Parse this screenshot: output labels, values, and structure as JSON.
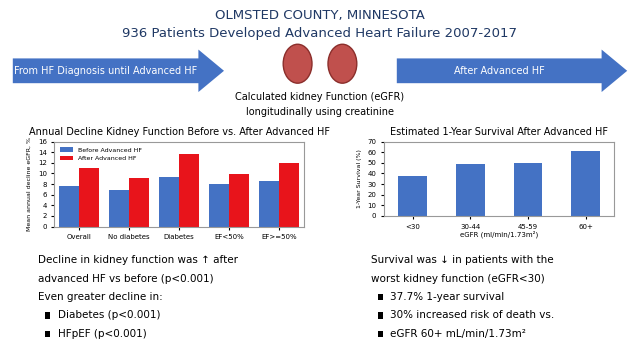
{
  "header": {
    "lines": [
      "OLMSTED COUNTY, MINNESOTA",
      "936 Patients Developed Advanced Heart Failure 2007-2017"
    ]
  },
  "arrows": [
    "From HF Diagnosis until Advanced HF",
    "After Advanced HF"
  ],
  "center": {
    "lines": [
      "Calculated kidney Function (eGFR)",
      "longitudinally using creatinine"
    ]
  },
  "chart_data": [
    {
      "type": "bar",
      "title": "Annual Decline Kidney Function Before vs. After Advanced HF",
      "y_label": "Mean annual decline eGFR, %",
      "categories": [
        "Overall",
        "No diabetes",
        "Diabetes",
        "EF<50%",
        "EF>=50%"
      ],
      "series": [
        {
          "name": "Before Advanced HF",
          "color": "#4472c4",
          "values": [
            7.6,
            6.8,
            9.3,
            8.1,
            8.5
          ]
        },
        {
          "name": "After Advanced HF",
          "color": "#e8141b",
          "values": [
            11.0,
            9.1,
            13.7,
            9.9,
            11.9
          ]
        }
      ],
      "ylim": [
        0,
        16
      ],
      "yticks": [
        0,
        2,
        4,
        6,
        8,
        10,
        12,
        14,
        16
      ],
      "legend": "upper left"
    },
    {
      "type": "bar",
      "title": "Estimated 1-Year Survival After Advanced HF",
      "y_label": "1-Year Survival (%)",
      "x_label": "eGFR (ml/min/1.73m²)",
      "categories": [
        "<30",
        "30-44",
        "45-59",
        "60+"
      ],
      "values": [
        37.7,
        48.5,
        50,
        61
      ],
      "color": "#4472c4",
      "ylim": [
        0,
        70
      ],
      "yticks": [
        0,
        10,
        20,
        30,
        40,
        50,
        60,
        70
      ]
    }
  ],
  "findings": [
    {
      "lines": [
        "Decline in kidney function was ↑ after",
        "advanced HF vs before (p<0.001)",
        "Even greater decline in:"
      ],
      "bullets": [
        "Diabetes (p<0.001)",
        "HFpEF (p<0.001)"
      ]
    },
    {
      "lines": [
        "Survival was ↓ in patients with the",
        "worst kidney function (eGFR<30)"
      ],
      "bullets": [
        "37.7% 1-year survival",
        "30% increased risk of death vs.",
        "eGFR 60+ mL/min/1.73m²"
      ]
    }
  ]
}
